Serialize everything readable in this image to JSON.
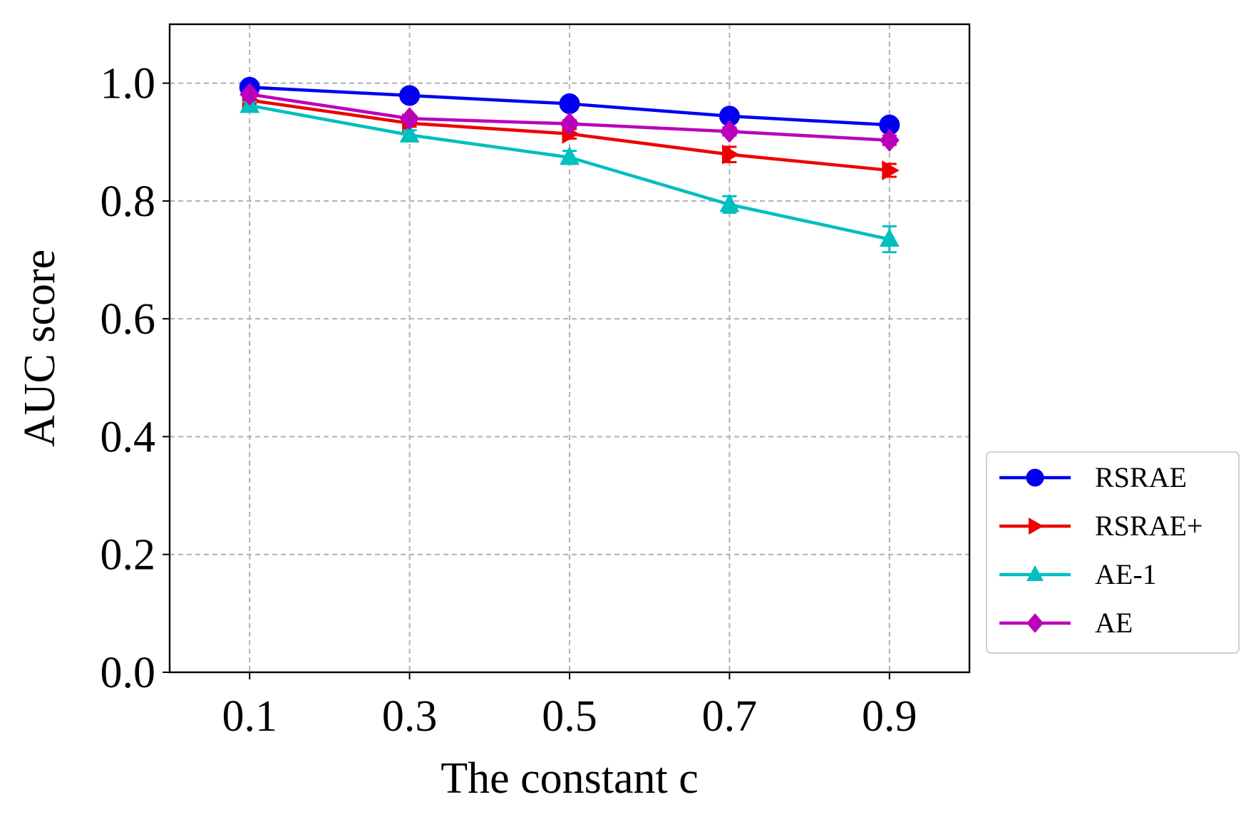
{
  "chart_data": {
    "type": "line",
    "title": "",
    "xlabel": "The constant c",
    "ylabel": "AUC score",
    "categories": [
      "0.1",
      "0.3",
      "0.5",
      "0.7",
      "0.9"
    ],
    "x": [
      0.1,
      0.3,
      0.5,
      0.7,
      0.9
    ],
    "xlim": [
      0.0,
      1.0
    ],
    "ylim": [
      0.0,
      1.1
    ],
    "yticks": [
      0.0,
      0.2,
      0.4,
      0.6,
      0.8,
      1.0
    ],
    "ytick_labels": [
      "0.0",
      "0.2",
      "0.4",
      "0.6",
      "0.8",
      "1.0"
    ],
    "grid": true,
    "legend_position": "outside-bottom-right",
    "series": [
      {
        "name": "RSRAE",
        "color": "#0000ee",
        "marker": "circle",
        "values": [
          0.993,
          0.979,
          0.965,
          0.944,
          0.929
        ],
        "errors": [
          0.004,
          0.004,
          0.005,
          0.006,
          0.007
        ]
      },
      {
        "name": "RSRAE+",
        "color": "#ee0000",
        "marker": "triangle-right",
        "values": [
          0.971,
          0.932,
          0.914,
          0.879,
          0.852
        ],
        "errors": [
          0.006,
          0.006,
          0.008,
          0.013,
          0.011
        ]
      },
      {
        "name": "AE-1",
        "color": "#00bfbf",
        "marker": "triangle-up",
        "values": [
          0.962,
          0.912,
          0.874,
          0.794,
          0.735
        ],
        "errors": [
          0.006,
          0.008,
          0.011,
          0.014,
          0.022
        ]
      },
      {
        "name": "AE",
        "color": "#bb00bb",
        "marker": "diamond",
        "values": [
          0.981,
          0.94,
          0.931,
          0.918,
          0.903
        ],
        "errors": [
          0.004,
          0.005,
          0.006,
          0.007,
          0.008
        ]
      }
    ]
  }
}
